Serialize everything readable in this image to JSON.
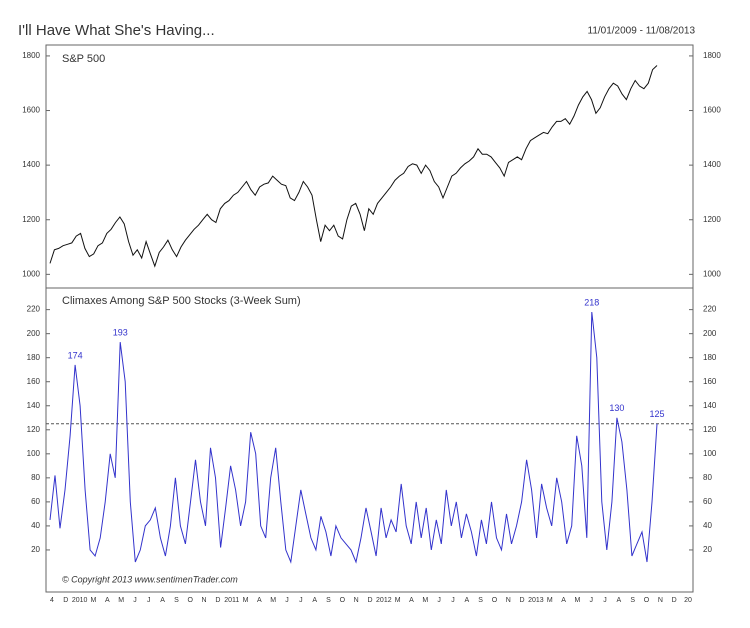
{
  "header": {
    "title": "I'll Have What She's Having...",
    "date_range": "11/01/2009 - 11/08/2013",
    "copyright": "© Copyright 2013  www.sentimenTrader.com"
  },
  "x_labels": [
    "4",
    "D",
    "2010",
    "M",
    "A",
    "M",
    "J",
    "J",
    "A",
    "S",
    "O",
    "N",
    "D",
    "2011",
    "M",
    "A",
    "M",
    "J",
    "J",
    "A",
    "S",
    "O",
    "N",
    "D",
    "2012",
    "M",
    "A",
    "M",
    "J",
    "J",
    "A",
    "S",
    "O",
    "N",
    "D",
    "2013",
    "M",
    "A",
    "M",
    "J",
    "J",
    "A",
    "S",
    "O",
    "N",
    "D",
    "20"
  ],
  "chart_data": [
    {
      "type": "line",
      "title": "S&P 500",
      "ylim": [
        950,
        1840
      ],
      "yticks": [
        1000,
        1200,
        1400,
        1600,
        1800
      ],
      "series": [
        {
          "name": "S&P 500",
          "color": "#111111",
          "values": [
            1040,
            1090,
            1095,
            1105,
            1110,
            1115,
            1140,
            1150,
            1095,
            1065,
            1075,
            1105,
            1115,
            1150,
            1165,
            1190,
            1210,
            1185,
            1120,
            1070,
            1090,
            1060,
            1120,
            1075,
            1030,
            1080,
            1100,
            1125,
            1090,
            1065,
            1100,
            1125,
            1145,
            1165,
            1180,
            1200,
            1220,
            1200,
            1190,
            1240,
            1260,
            1270,
            1290,
            1300,
            1320,
            1340,
            1310,
            1290,
            1320,
            1330,
            1335,
            1360,
            1345,
            1330,
            1325,
            1280,
            1270,
            1300,
            1340,
            1320,
            1290,
            1200,
            1120,
            1180,
            1160,
            1180,
            1140,
            1130,
            1200,
            1250,
            1260,
            1220,
            1160,
            1240,
            1220,
            1260,
            1280,
            1300,
            1320,
            1345,
            1360,
            1370,
            1395,
            1405,
            1400,
            1370,
            1400,
            1380,
            1340,
            1320,
            1280,
            1320,
            1360,
            1370,
            1390,
            1405,
            1415,
            1430,
            1460,
            1440,
            1440,
            1430,
            1410,
            1390,
            1360,
            1410,
            1420,
            1430,
            1420,
            1460,
            1490,
            1500,
            1510,
            1520,
            1515,
            1540,
            1560,
            1560,
            1570,
            1550,
            1580,
            1620,
            1650,
            1670,
            1640,
            1590,
            1610,
            1650,
            1680,
            1700,
            1690,
            1660,
            1640,
            1680,
            1710,
            1690,
            1680,
            1700,
            1750,
            1765
          ]
        }
      ]
    },
    {
      "type": "line",
      "title": "Climaxes Among S&P 500 Stocks (3-Week Sum)",
      "ylim": [
        -15,
        238
      ],
      "yticks": [
        20,
        40,
        60,
        80,
        100,
        120,
        140,
        160,
        180,
        200,
        220
      ],
      "reference_line": 125,
      "annotations": [
        "174",
        "193",
        "218",
        "130",
        "125"
      ],
      "series": [
        {
          "name": "Climaxes",
          "color": "#3333cc",
          "values": [
            45,
            82,
            38,
            70,
            115,
            174,
            140,
            70,
            20,
            15,
            30,
            60,
            100,
            80,
            193,
            160,
            60,
            10,
            20,
            40,
            45,
            55,
            30,
            15,
            40,
            80,
            40,
            25,
            60,
            95,
            60,
            40,
            105,
            80,
            22,
            55,
            90,
            70,
            40,
            60,
            118,
            100,
            40,
            30,
            80,
            105,
            60,
            20,
            10,
            40,
            70,
            50,
            30,
            20,
            48,
            35,
            15,
            40,
            30,
            25,
            20,
            10,
            30,
            55,
            35,
            15,
            55,
            30,
            45,
            35,
            75,
            40,
            25,
            60,
            30,
            55,
            20,
            45,
            25,
            70,
            40,
            60,
            30,
            50,
            35,
            15,
            45,
            25,
            60,
            30,
            20,
            50,
            25,
            40,
            60,
            95,
            70,
            30,
            75,
            55,
            40,
            80,
            60,
            25,
            40,
            115,
            90,
            30,
            218,
            180,
            60,
            20,
            60,
            130,
            110,
            70,
            15,
            25,
            35,
            10,
            60,
            125
          ]
        }
      ]
    }
  ]
}
